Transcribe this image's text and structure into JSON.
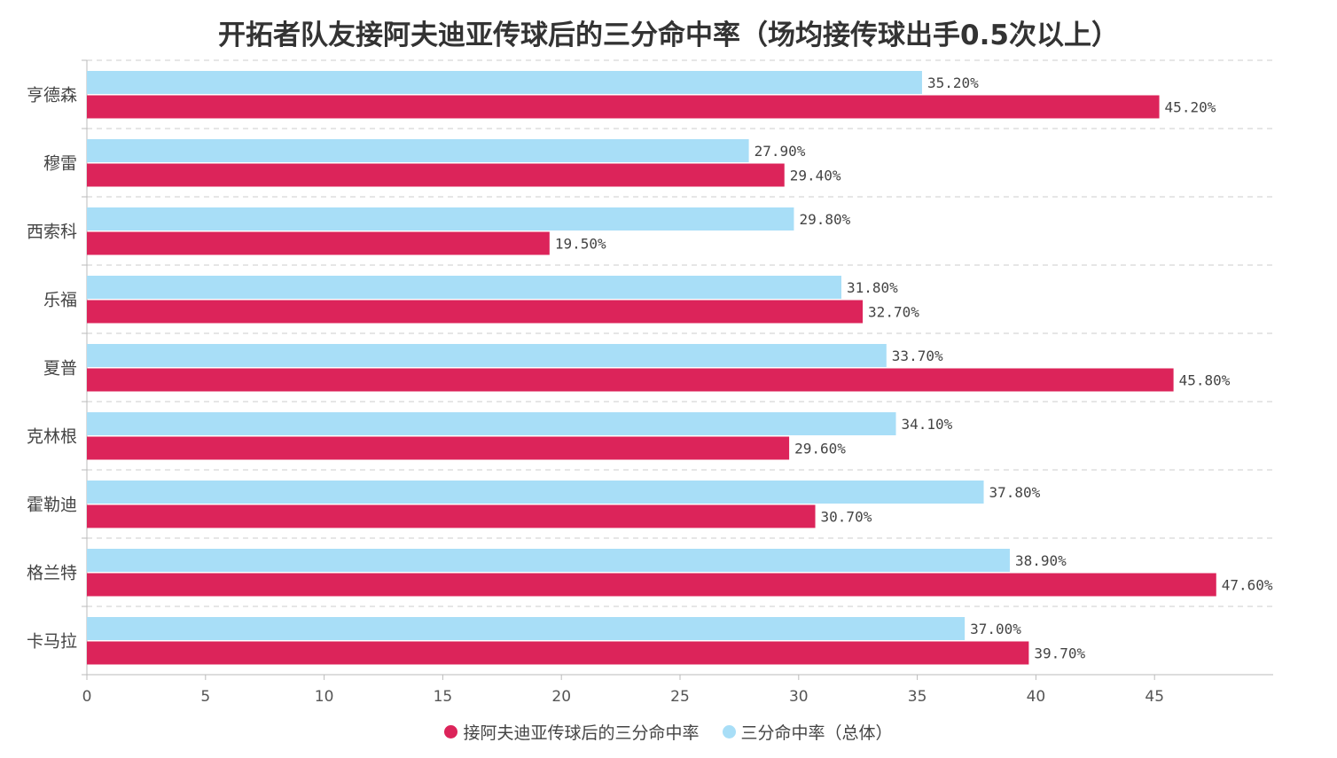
{
  "chart_data": {
    "type": "bar",
    "orientation": "horizontal",
    "title": "开拓者队友接阿夫迪亚传球后的三分命中率（场均接传球出手0.5次以上）",
    "categories": [
      "亨德森",
      "穆雷",
      "西索科",
      "乐福",
      "夏普",
      "克林根",
      "霍勒迪",
      "格兰特",
      "卡马拉"
    ],
    "series": [
      {
        "name": "三分命中率（总体）",
        "color": "#a8def7",
        "values": [
          35.2,
          27.9,
          29.8,
          31.8,
          33.7,
          34.1,
          37.8,
          38.9,
          37.0
        ],
        "labels": [
          "35.20%",
          "27.90%",
          "29.80%",
          "31.80%",
          "33.70%",
          "34.10%",
          "37.80%",
          "38.90%",
          "37.00%"
        ]
      },
      {
        "name": "接阿夫迪亚传球后的三分命中率",
        "color": "#dc245a",
        "values": [
          45.2,
          29.4,
          19.5,
          32.7,
          45.8,
          29.6,
          30.7,
          47.6,
          39.7
        ],
        "labels": [
          "45.20%",
          "29.40%",
          "19.50%",
          "32.70%",
          "45.80%",
          "29.60%",
          "30.70%",
          "47.60%",
          "39.70%"
        ]
      }
    ],
    "xlim": [
      0,
      50
    ],
    "xticks": [
      "0",
      "5",
      "10",
      "15",
      "20",
      "25",
      "30",
      "35",
      "40",
      "45"
    ],
    "xlabel": "",
    "ylabel": "",
    "grid": "horizontal dashed",
    "legend": "bottom-center"
  }
}
